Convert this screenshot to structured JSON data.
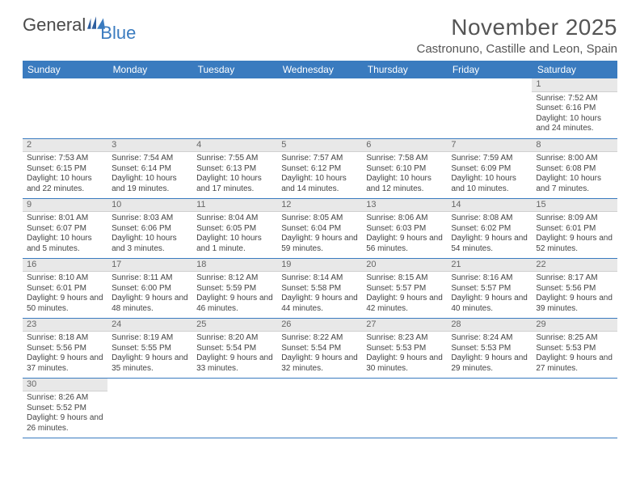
{
  "brand": {
    "part1": "General",
    "part2": "Blue"
  },
  "title": "November 2025",
  "location": "Castronuno, Castille and Leon, Spain",
  "colors": {
    "header_bg": "#3a7bbf",
    "header_text": "#ffffff",
    "daynum_bg": "#e8e8e8",
    "row_border": "#3a7bbf",
    "body_text": "#444444",
    "title_text": "#555555"
  },
  "typography": {
    "title_fontsize": 28,
    "location_fontsize": 15,
    "dayhead_fontsize": 12,
    "cell_fontsize": 10
  },
  "day_headers": [
    "Sunday",
    "Monday",
    "Tuesday",
    "Wednesday",
    "Thursday",
    "Friday",
    "Saturday"
  ],
  "weeks": [
    [
      null,
      null,
      null,
      null,
      null,
      null,
      {
        "n": "1",
        "sunrise": "7:52 AM",
        "sunset": "6:16 PM",
        "daylight": "10 hours and 24 minutes."
      }
    ],
    [
      {
        "n": "2",
        "sunrise": "7:53 AM",
        "sunset": "6:15 PM",
        "daylight": "10 hours and 22 minutes."
      },
      {
        "n": "3",
        "sunrise": "7:54 AM",
        "sunset": "6:14 PM",
        "daylight": "10 hours and 19 minutes."
      },
      {
        "n": "4",
        "sunrise": "7:55 AM",
        "sunset": "6:13 PM",
        "daylight": "10 hours and 17 minutes."
      },
      {
        "n": "5",
        "sunrise": "7:57 AM",
        "sunset": "6:12 PM",
        "daylight": "10 hours and 14 minutes."
      },
      {
        "n": "6",
        "sunrise": "7:58 AM",
        "sunset": "6:10 PM",
        "daylight": "10 hours and 12 minutes."
      },
      {
        "n": "7",
        "sunrise": "7:59 AM",
        "sunset": "6:09 PM",
        "daylight": "10 hours and 10 minutes."
      },
      {
        "n": "8",
        "sunrise": "8:00 AM",
        "sunset": "6:08 PM",
        "daylight": "10 hours and 7 minutes."
      }
    ],
    [
      {
        "n": "9",
        "sunrise": "8:01 AM",
        "sunset": "6:07 PM",
        "daylight": "10 hours and 5 minutes."
      },
      {
        "n": "10",
        "sunrise": "8:03 AM",
        "sunset": "6:06 PM",
        "daylight": "10 hours and 3 minutes."
      },
      {
        "n": "11",
        "sunrise": "8:04 AM",
        "sunset": "6:05 PM",
        "daylight": "10 hours and 1 minute."
      },
      {
        "n": "12",
        "sunrise": "8:05 AM",
        "sunset": "6:04 PM",
        "daylight": "9 hours and 59 minutes."
      },
      {
        "n": "13",
        "sunrise": "8:06 AM",
        "sunset": "6:03 PM",
        "daylight": "9 hours and 56 minutes."
      },
      {
        "n": "14",
        "sunrise": "8:08 AM",
        "sunset": "6:02 PM",
        "daylight": "9 hours and 54 minutes."
      },
      {
        "n": "15",
        "sunrise": "8:09 AM",
        "sunset": "6:01 PM",
        "daylight": "9 hours and 52 minutes."
      }
    ],
    [
      {
        "n": "16",
        "sunrise": "8:10 AM",
        "sunset": "6:01 PM",
        "daylight": "9 hours and 50 minutes."
      },
      {
        "n": "17",
        "sunrise": "8:11 AM",
        "sunset": "6:00 PM",
        "daylight": "9 hours and 48 minutes."
      },
      {
        "n": "18",
        "sunrise": "8:12 AM",
        "sunset": "5:59 PM",
        "daylight": "9 hours and 46 minutes."
      },
      {
        "n": "19",
        "sunrise": "8:14 AM",
        "sunset": "5:58 PM",
        "daylight": "9 hours and 44 minutes."
      },
      {
        "n": "20",
        "sunrise": "8:15 AM",
        "sunset": "5:57 PM",
        "daylight": "9 hours and 42 minutes."
      },
      {
        "n": "21",
        "sunrise": "8:16 AM",
        "sunset": "5:57 PM",
        "daylight": "9 hours and 40 minutes."
      },
      {
        "n": "22",
        "sunrise": "8:17 AM",
        "sunset": "5:56 PM",
        "daylight": "9 hours and 39 minutes."
      }
    ],
    [
      {
        "n": "23",
        "sunrise": "8:18 AM",
        "sunset": "5:56 PM",
        "daylight": "9 hours and 37 minutes."
      },
      {
        "n": "24",
        "sunrise": "8:19 AM",
        "sunset": "5:55 PM",
        "daylight": "9 hours and 35 minutes."
      },
      {
        "n": "25",
        "sunrise": "8:20 AM",
        "sunset": "5:54 PM",
        "daylight": "9 hours and 33 minutes."
      },
      {
        "n": "26",
        "sunrise": "8:22 AM",
        "sunset": "5:54 PM",
        "daylight": "9 hours and 32 minutes."
      },
      {
        "n": "27",
        "sunrise": "8:23 AM",
        "sunset": "5:53 PM",
        "daylight": "9 hours and 30 minutes."
      },
      {
        "n": "28",
        "sunrise": "8:24 AM",
        "sunset": "5:53 PM",
        "daylight": "9 hours and 29 minutes."
      },
      {
        "n": "29",
        "sunrise": "8:25 AM",
        "sunset": "5:53 PM",
        "daylight": "9 hours and 27 minutes."
      }
    ],
    [
      {
        "n": "30",
        "sunrise": "8:26 AM",
        "sunset": "5:52 PM",
        "daylight": "9 hours and 26 minutes."
      },
      null,
      null,
      null,
      null,
      null,
      null
    ]
  ],
  "labels": {
    "sunrise": "Sunrise:",
    "sunset": "Sunset:",
    "daylight": "Daylight:"
  }
}
